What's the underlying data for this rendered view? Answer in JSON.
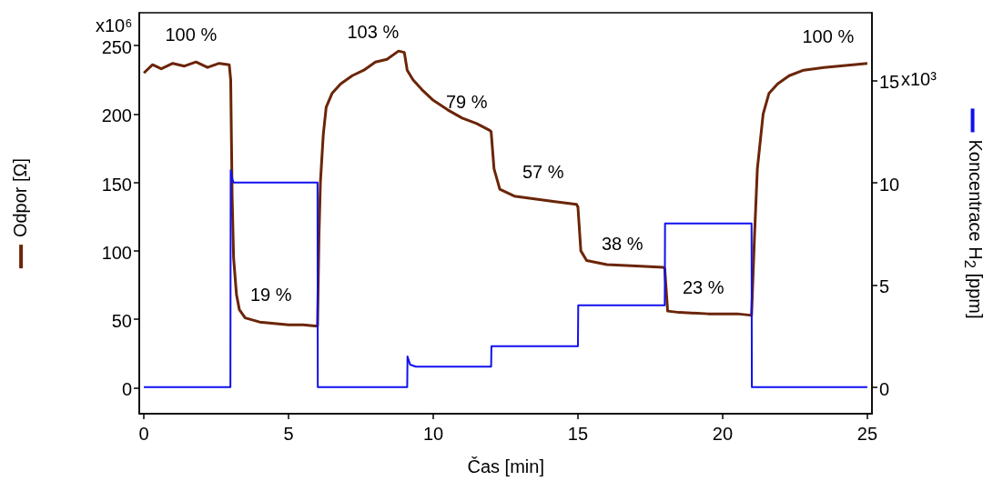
{
  "chart_data": {
    "type": "line",
    "xlabel": "Čas [min]",
    "ylabel": "Odpor [Ω]",
    "y2label": "Koncentrace H$_{2}$ [ppm]",
    "xlim": [
      -0.16,
      25.16
    ],
    "xticks": [
      0,
      5,
      10,
      15,
      20,
      25
    ],
    "ylim": [
      -19,
      274
    ],
    "yticks": [
      0,
      50,
      100,
      150,
      200,
      250
    ],
    "y2lim": [
      -1.3,
      18.3
    ],
    "y2ticks": [
      0,
      5,
      10,
      15
    ],
    "marker": "none",
    "line_style": "solid",
    "series": [
      {
        "color": "#6b2508",
        "x": [
          0,
          0.3,
          0.6,
          1,
          1.4,
          1.8,
          2.2,
          2.6,
          2.95,
          3.0,
          3.05,
          3.1,
          3.2,
          3.3,
          3.5,
          4,
          4.5,
          5,
          5.5,
          6.0,
          6.05,
          6.1,
          6.2,
          6.3,
          6.5,
          6.8,
          7.2,
          7.6,
          8,
          8.4,
          8.8,
          9.0,
          9.1,
          9.3,
          9.6,
          10,
          10.5,
          11,
          11.5,
          11.95,
          12.0,
          12.1,
          12.3,
          12.8,
          13.5,
          14.2,
          14.95,
          15.0,
          15.1,
          15.3,
          16,
          17,
          17.95,
          18.0,
          18.1,
          18.5,
          19.5,
          20.5,
          20.95,
          21.0,
          21.1,
          21.2,
          21.4,
          21.6,
          21.9,
          22.3,
          22.8,
          23.5,
          24,
          24.5,
          25
        ],
        "values": [
          230,
          236,
          233,
          237,
          235,
          238,
          234,
          237,
          236,
          225,
          140,
          95,
          68,
          57,
          51,
          48,
          47,
          46,
          46,
          45,
          110,
          150,
          185,
          205,
          215,
          222,
          228,
          232,
          238,
          240,
          246,
          245,
          232,
          225,
          218,
          210,
          203,
          197,
          193,
          188,
          187,
          160,
          145,
          140,
          138,
          136,
          134,
          132,
          100,
          93,
          90,
          89,
          88,
          87,
          56,
          55,
          54,
          54,
          53,
          53,
          110,
          160,
          200,
          215,
          222,
          228,
          232,
          234,
          235,
          236,
          237
        ]
      },
      {
        "axis": "y2",
        "color": "#1010f0",
        "x": [
          0,
          2.99,
          3.0,
          3.05,
          3.1,
          3.5,
          6.0,
          6.01,
          9.1,
          9.11,
          9.2,
          9.4,
          12.0,
          12.01,
          12.2,
          15.0,
          15.01,
          15.2,
          18.0,
          18.01,
          21.0,
          21.01,
          25
        ],
        "values": [
          0,
          0,
          10.6,
          10.2,
          10,
          10,
          10,
          0,
          0,
          1.5,
          1.1,
          1,
          1,
          2,
          2,
          2,
          4,
          4,
          4,
          8,
          8,
          0,
          0
        ]
      }
    ],
    "annotations": [
      "100 %",
      "19 %",
      "103 %",
      "79 %",
      "57 %",
      "38 %",
      "23 %",
      "100 %",
      "x10⁶",
      "x10³"
    ]
  }
}
